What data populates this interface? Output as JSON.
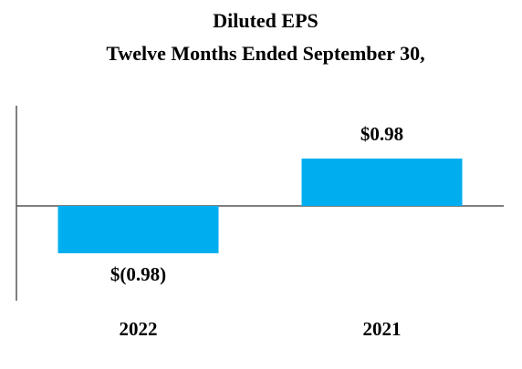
{
  "colors": {
    "bar": "#00aeef",
    "axis": "#555555",
    "text": "#000000",
    "background": "#ffffff"
  },
  "chart_data": {
    "type": "bar",
    "title": "Diluted EPS",
    "subtitle": "Twelve Months Ended September 30,",
    "categories": [
      "2022",
      "2021"
    ],
    "values": [
      -0.98,
      0.98
    ],
    "data_labels": [
      "$(0.98)",
      "$0.98"
    ],
    "xlabel": "",
    "ylabel": "",
    "ylim": [
      -2.0,
      2.0
    ],
    "grid": false,
    "legend": "none"
  }
}
